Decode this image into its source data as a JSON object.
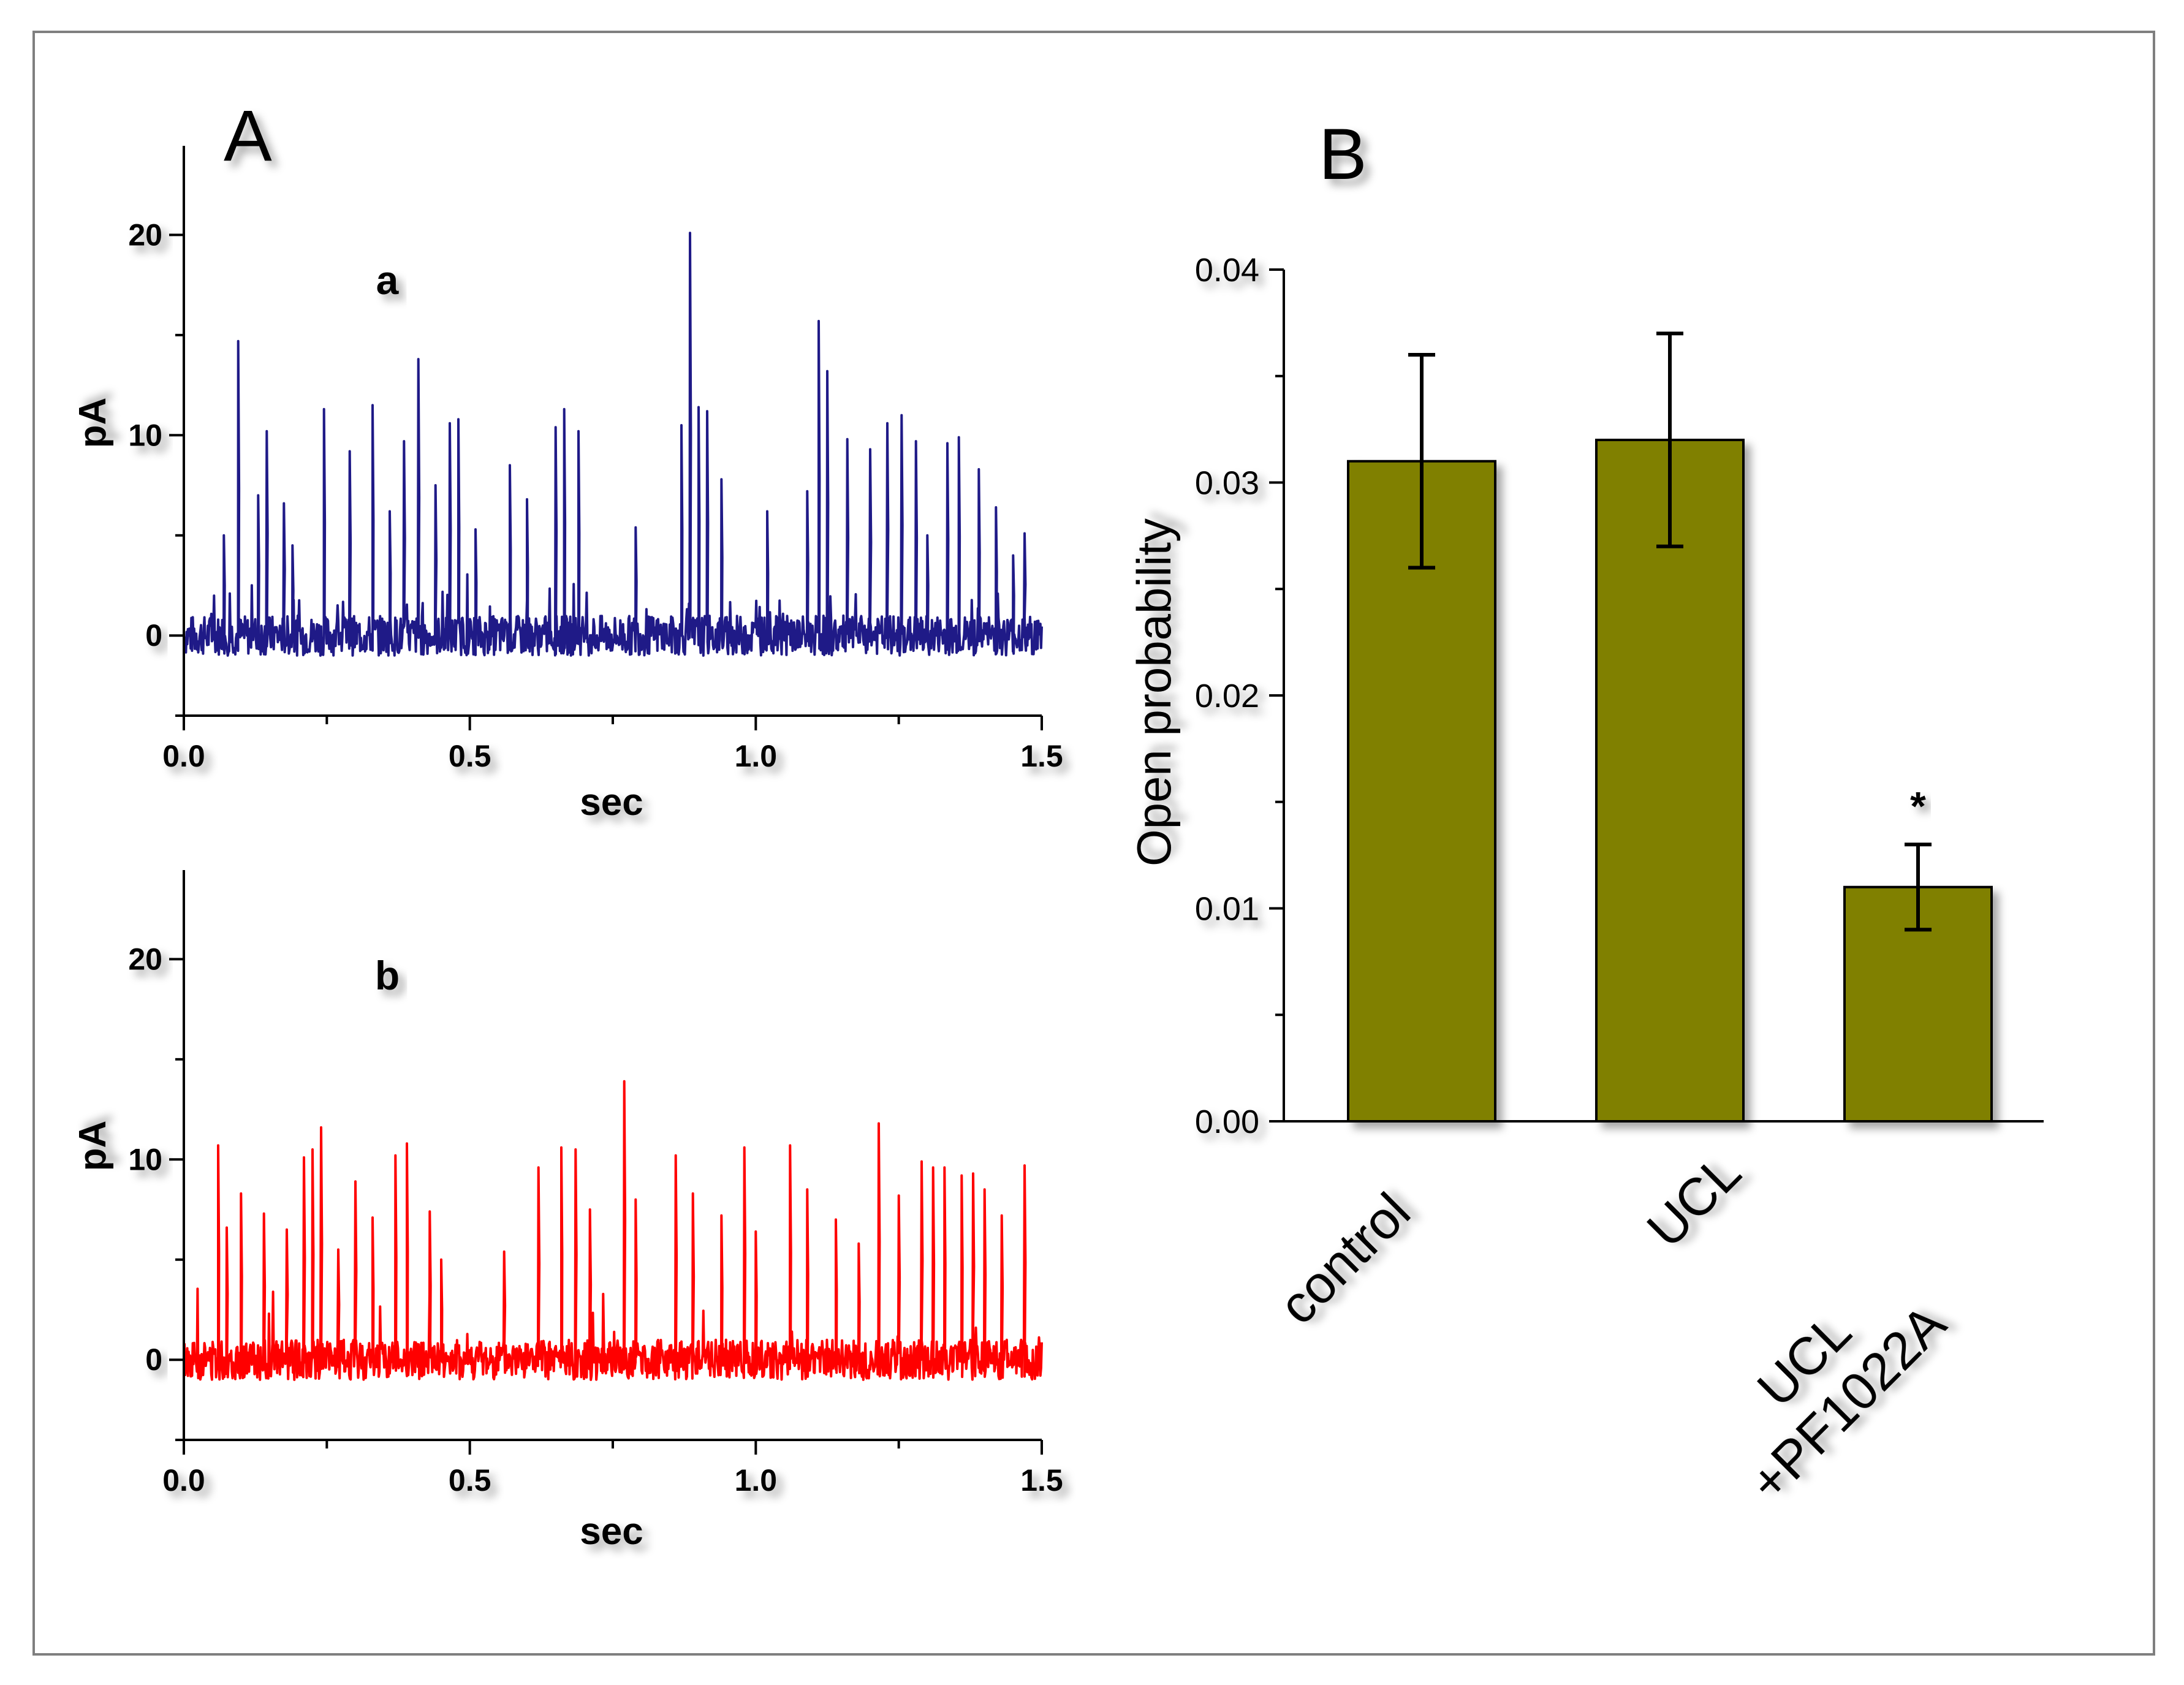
{
  "colors": {
    "trace_a": "#1f1a87",
    "trace_b": "#ff0000",
    "bar_fill": "#808000",
    "axis": "#000000",
    "frame": "#7f7f7f"
  },
  "panel_labels": {
    "a": "A",
    "b": "B"
  },
  "chart_data": [
    {
      "type": "line",
      "panel": "A",
      "label": "a",
      "xlabel": "sec",
      "ylabel": "pA",
      "xlim": [
        0,
        1.5
      ],
      "ylim": [
        -4,
        22
      ],
      "xticks": [
        "0.0",
        "0.5",
        "1.0",
        "1.5"
      ],
      "yticks": [
        "0",
        "10",
        "20"
      ],
      "baseline": 0,
      "noise_amplitude": 1.0,
      "spikes": [
        {
          "x": 0.07,
          "y": 5.0
        },
        {
          "x": 0.095,
          "y": 14.7
        },
        {
          "x": 0.13,
          "y": 7.0
        },
        {
          "x": 0.145,
          "y": 10.2
        },
        {
          "x": 0.175,
          "y": 6.6
        },
        {
          "x": 0.19,
          "y": 4.5
        },
        {
          "x": 0.245,
          "y": 11.3
        },
        {
          "x": 0.29,
          "y": 9.2
        },
        {
          "x": 0.33,
          "y": 11.5
        },
        {
          "x": 0.36,
          "y": 6.2
        },
        {
          "x": 0.385,
          "y": 9.7
        },
        {
          "x": 0.41,
          "y": 13.8
        },
        {
          "x": 0.44,
          "y": 7.5
        },
        {
          "x": 0.465,
          "y": 10.6
        },
        {
          "x": 0.48,
          "y": 10.8
        },
        {
          "x": 0.51,
          "y": 5.3
        },
        {
          "x": 0.57,
          "y": 8.5
        },
        {
          "x": 0.6,
          "y": 6.8
        },
        {
          "x": 0.65,
          "y": 10.4
        },
        {
          "x": 0.665,
          "y": 11.3
        },
        {
          "x": 0.69,
          "y": 10.2
        },
        {
          "x": 0.79,
          "y": 5.4
        },
        {
          "x": 0.87,
          "y": 10.5
        },
        {
          "x": 0.885,
          "y": 20.1
        },
        {
          "x": 0.9,
          "y": 11.4
        },
        {
          "x": 0.915,
          "y": 11.2
        },
        {
          "x": 0.94,
          "y": 7.8
        },
        {
          "x": 1.02,
          "y": 6.2
        },
        {
          "x": 1.09,
          "y": 7.2
        },
        {
          "x": 1.11,
          "y": 15.7
        },
        {
          "x": 1.125,
          "y": 13.2
        },
        {
          "x": 1.16,
          "y": 9.8
        },
        {
          "x": 1.2,
          "y": 9.3
        },
        {
          "x": 1.23,
          "y": 10.6
        },
        {
          "x": 1.255,
          "y": 11.0
        },
        {
          "x": 1.28,
          "y": 9.7
        },
        {
          "x": 1.3,
          "y": 5.0
        },
        {
          "x": 1.335,
          "y": 9.6
        },
        {
          "x": 1.355,
          "y": 9.9
        },
        {
          "x": 1.39,
          "y": 8.3
        },
        {
          "x": 1.42,
          "y": 6.4
        },
        {
          "x": 1.45,
          "y": 4.0
        },
        {
          "x": 1.47,
          "y": 5.1
        }
      ]
    },
    {
      "type": "line",
      "panel": "A",
      "label": "b",
      "xlabel": "sec",
      "ylabel": "pA",
      "xlim": [
        0,
        1.5
      ],
      "ylim": [
        -4,
        22
      ],
      "xticks": [
        "0.0",
        "0.5",
        "1.0",
        "1.5"
      ],
      "yticks": [
        "0",
        "10",
        "20"
      ],
      "baseline": 0,
      "noise_amplitude": 1.0,
      "spikes": [
        {
          "x": 0.06,
          "y": 10.7
        },
        {
          "x": 0.075,
          "y": 6.6
        },
        {
          "x": 0.1,
          "y": 8.3
        },
        {
          "x": 0.14,
          "y": 7.3
        },
        {
          "x": 0.18,
          "y": 6.5
        },
        {
          "x": 0.21,
          "y": 10.1
        },
        {
          "x": 0.225,
          "y": 10.5
        },
        {
          "x": 0.24,
          "y": 11.6
        },
        {
          "x": 0.27,
          "y": 5.5
        },
        {
          "x": 0.3,
          "y": 8.9
        },
        {
          "x": 0.33,
          "y": 7.1
        },
        {
          "x": 0.37,
          "y": 10.2
        },
        {
          "x": 0.39,
          "y": 10.8
        },
        {
          "x": 0.43,
          "y": 7.4
        },
        {
          "x": 0.45,
          "y": 5.0
        },
        {
          "x": 0.56,
          "y": 5.4
        },
        {
          "x": 0.62,
          "y": 9.6
        },
        {
          "x": 0.66,
          "y": 10.6
        },
        {
          "x": 0.685,
          "y": 10.5
        },
        {
          "x": 0.71,
          "y": 7.5
        },
        {
          "x": 0.77,
          "y": 13.9
        },
        {
          "x": 0.79,
          "y": 8.0
        },
        {
          "x": 0.86,
          "y": 10.2
        },
        {
          "x": 0.89,
          "y": 8.3
        },
        {
          "x": 0.94,
          "y": 7.2
        },
        {
          "x": 0.98,
          "y": 10.6
        },
        {
          "x": 1.0,
          "y": 6.4
        },
        {
          "x": 1.06,
          "y": 10.7
        },
        {
          "x": 1.09,
          "y": 8.5
        },
        {
          "x": 1.14,
          "y": 7.0
        },
        {
          "x": 1.18,
          "y": 5.8
        },
        {
          "x": 1.215,
          "y": 11.8
        },
        {
          "x": 1.25,
          "y": 8.2
        },
        {
          "x": 1.29,
          "y": 9.9
        },
        {
          "x": 1.31,
          "y": 9.6
        },
        {
          "x": 1.33,
          "y": 9.6
        },
        {
          "x": 1.36,
          "y": 9.2
        },
        {
          "x": 1.38,
          "y": 9.3
        },
        {
          "x": 1.4,
          "y": 8.5
        },
        {
          "x": 1.43,
          "y": 7.2
        },
        {
          "x": 1.47,
          "y": 9.7
        }
      ]
    },
    {
      "type": "bar",
      "panel": "B",
      "categories": [
        "control",
        "UCL",
        "UCL\n+PF1022A"
      ],
      "values": [
        0.031,
        0.032,
        0.011
      ],
      "errors": [
        0.005,
        0.005,
        0.002
      ],
      "annotations": [
        "",
        "",
        "*"
      ],
      "xlabel": "",
      "ylabel": "Open probability",
      "ylim": [
        0,
        0.04
      ],
      "yticks": [
        "0.00",
        "0.01",
        "0.02",
        "0.03",
        "0.04"
      ]
    }
  ]
}
